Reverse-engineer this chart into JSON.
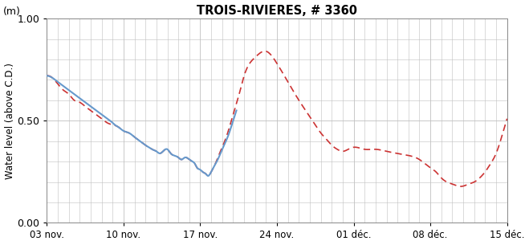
{
  "title": "TROIS-RIVIERES, # 3360",
  "ylabel_top": "(m)",
  "ylabel_main": "Water level (above C.D.)",
  "ylim": [
    0.0,
    1.0
  ],
  "background_color": "#ffffff",
  "grid_color": "#c0c0c0",
  "blue_line_color": "#6699cc",
  "red_dashed_color": "#cc3333",
  "x_tick_labels": [
    "03 nov.",
    "10 nov.",
    "17 nov.",
    "24 nov.",
    "01 déc.",
    "08 déc.",
    "15 déc."
  ],
  "x_tick_positions": [
    0,
    7,
    14,
    21,
    28,
    35,
    42
  ],
  "blue_kx": [
    0,
    1,
    2,
    3,
    3.5,
    4,
    4.5,
    5,
    5.5,
    6,
    6.5,
    7,
    7.5,
    8,
    8.5,
    9,
    9.5,
    10,
    10.5,
    11,
    11.5,
    12,
    12.5,
    13,
    13.3,
    13.6,
    14,
    14.3,
    14.6,
    14.9,
    15.1,
    15.3,
    15.6,
    16,
    16.5,
    17,
    17.5
  ],
  "blue_ky": [
    0.72,
    0.7,
    0.67,
    0.63,
    0.61,
    0.59,
    0.57,
    0.55,
    0.53,
    0.51,
    0.49,
    0.47,
    0.46,
    0.44,
    0.42,
    0.4,
    0.38,
    0.36,
    0.35,
    0.34,
    0.33,
    0.32,
    0.31,
    0.3,
    0.29,
    0.28,
    0.27,
    0.26,
    0.25,
    0.24,
    0.26,
    0.29,
    0.32,
    0.36,
    0.4,
    0.44,
    0.5
  ],
  "red_kx": [
    0,
    1,
    2,
    3,
    3.5,
    4,
    4.5,
    5,
    5.5,
    6,
    6.5,
    7,
    7.5,
    8,
    8.5,
    9,
    9.5,
    10,
    10.5,
    11,
    11.5,
    12,
    12.5,
    13,
    13.3,
    13.6,
    14,
    14.3,
    14.6,
    14.9,
    15.2,
    15.5,
    16,
    16.5,
    17,
    17.5,
    18,
    19,
    20,
    21,
    22,
    23,
    24,
    25,
    26,
    26.5,
    27,
    27.5,
    28,
    29,
    30,
    31,
    32,
    33,
    34,
    35,
    36,
    37,
    38,
    39,
    40,
    41,
    42
  ],
  "red_ky": [
    0.72,
    0.7,
    0.66,
    0.62,
    0.6,
    0.58,
    0.56,
    0.54,
    0.52,
    0.5,
    0.48,
    0.46,
    0.45,
    0.43,
    0.41,
    0.39,
    0.37,
    0.36,
    0.35,
    0.34,
    0.33,
    0.32,
    0.31,
    0.3,
    0.29,
    0.27,
    0.26,
    0.25,
    0.24,
    0.25,
    0.28,
    0.31,
    0.36,
    0.42,
    0.5,
    0.59,
    0.68,
    0.79,
    0.83,
    0.77,
    0.68,
    0.6,
    0.52,
    0.46,
    0.38,
    0.36,
    0.35,
    0.36,
    0.37,
    0.36,
    0.35,
    0.34,
    0.33,
    0.31,
    0.28,
    0.24,
    0.2,
    0.18,
    0.19,
    0.22,
    0.28,
    0.37,
    0.51
  ]
}
